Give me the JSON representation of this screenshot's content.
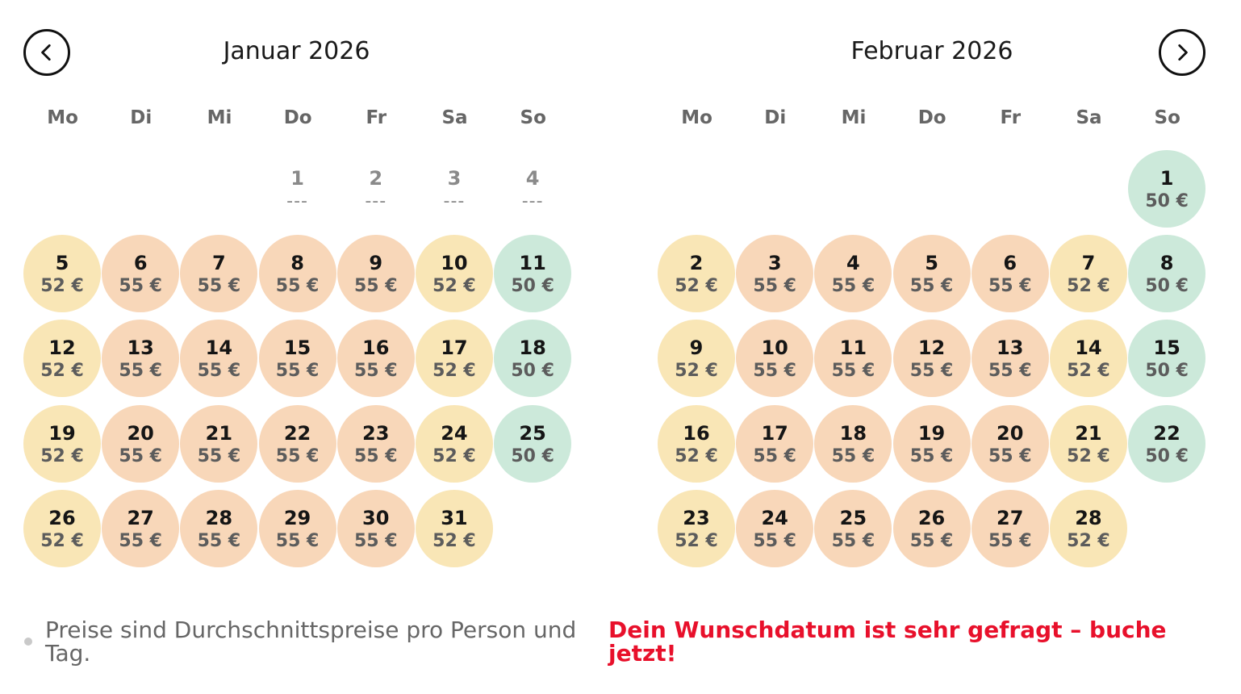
{
  "nav": {
    "prev_icon": "chevron-left-icon",
    "next_icon": "chevron-right-icon"
  },
  "weekdays": [
    "Mo",
    "Di",
    "Mi",
    "Do",
    "Fr",
    "Sa",
    "So"
  ],
  "colors": {
    "tier_52": "#f9e6b6",
    "tier_55": "#f8d7b9",
    "tier_50": "#cce9da",
    "alert": "#e8102b"
  },
  "months": [
    {
      "title": "Januar 2026",
      "offset": 3,
      "days": [
        {
          "day": "1",
          "price": "---",
          "tier": "na"
        },
        {
          "day": "2",
          "price": "---",
          "tier": "na"
        },
        {
          "day": "3",
          "price": "---",
          "tier": "na"
        },
        {
          "day": "4",
          "price": "---",
          "tier": "na"
        },
        {
          "day": "5",
          "price": "52 €",
          "tier": "52"
        },
        {
          "day": "6",
          "price": "55 €",
          "tier": "55"
        },
        {
          "day": "7",
          "price": "55 €",
          "tier": "55"
        },
        {
          "day": "8",
          "price": "55 €",
          "tier": "55"
        },
        {
          "day": "9",
          "price": "55 €",
          "tier": "55"
        },
        {
          "day": "10",
          "price": "52 €",
          "tier": "52"
        },
        {
          "day": "11",
          "price": "50 €",
          "tier": "50"
        },
        {
          "day": "12",
          "price": "52 €",
          "tier": "52"
        },
        {
          "day": "13",
          "price": "55 €",
          "tier": "55"
        },
        {
          "day": "14",
          "price": "55 €",
          "tier": "55"
        },
        {
          "day": "15",
          "price": "55 €",
          "tier": "55"
        },
        {
          "day": "16",
          "price": "55 €",
          "tier": "55"
        },
        {
          "day": "17",
          "price": "52 €",
          "tier": "52"
        },
        {
          "day": "18",
          "price": "50 €",
          "tier": "50"
        },
        {
          "day": "19",
          "price": "52 €",
          "tier": "52"
        },
        {
          "day": "20",
          "price": "55 €",
          "tier": "55"
        },
        {
          "day": "21",
          "price": "55 €",
          "tier": "55"
        },
        {
          "day": "22",
          "price": "55 €",
          "tier": "55"
        },
        {
          "day": "23",
          "price": "55 €",
          "tier": "55"
        },
        {
          "day": "24",
          "price": "52 €",
          "tier": "52"
        },
        {
          "day": "25",
          "price": "50 €",
          "tier": "50"
        },
        {
          "day": "26",
          "price": "52 €",
          "tier": "52"
        },
        {
          "day": "27",
          "price": "55 €",
          "tier": "55"
        },
        {
          "day": "28",
          "price": "55 €",
          "tier": "55"
        },
        {
          "day": "29",
          "price": "55 €",
          "tier": "55"
        },
        {
          "day": "30",
          "price": "55 €",
          "tier": "55"
        },
        {
          "day": "31",
          "price": "52 €",
          "tier": "52"
        }
      ]
    },
    {
      "title": "Februar 2026",
      "offset": 6,
      "days": [
        {
          "day": "1",
          "price": "50 €",
          "tier": "50"
        },
        {
          "day": "2",
          "price": "52 €",
          "tier": "52"
        },
        {
          "day": "3",
          "price": "55 €",
          "tier": "55"
        },
        {
          "day": "4",
          "price": "55 €",
          "tier": "55"
        },
        {
          "day": "5",
          "price": "55 €",
          "tier": "55"
        },
        {
          "day": "6",
          "price": "55 €",
          "tier": "55"
        },
        {
          "day": "7",
          "price": "52 €",
          "tier": "52"
        },
        {
          "day": "8",
          "price": "50 €",
          "tier": "50"
        },
        {
          "day": "9",
          "price": "52 €",
          "tier": "52"
        },
        {
          "day": "10",
          "price": "55 €",
          "tier": "55"
        },
        {
          "day": "11",
          "price": "55 €",
          "tier": "55"
        },
        {
          "day": "12",
          "price": "55 €",
          "tier": "55"
        },
        {
          "day": "13",
          "price": "55 €",
          "tier": "55"
        },
        {
          "day": "14",
          "price": "52 €",
          "tier": "52"
        },
        {
          "day": "15",
          "price": "50 €",
          "tier": "50"
        },
        {
          "day": "16",
          "price": "52 €",
          "tier": "52"
        },
        {
          "day": "17",
          "price": "55 €",
          "tier": "55"
        },
        {
          "day": "18",
          "price": "55 €",
          "tier": "55"
        },
        {
          "day": "19",
          "price": "55 €",
          "tier": "55"
        },
        {
          "day": "20",
          "price": "55 €",
          "tier": "55"
        },
        {
          "day": "21",
          "price": "52 €",
          "tier": "52"
        },
        {
          "day": "22",
          "price": "50 €",
          "tier": "50"
        },
        {
          "day": "23",
          "price": "52 €",
          "tier": "52"
        },
        {
          "day": "24",
          "price": "55 €",
          "tier": "55"
        },
        {
          "day": "25",
          "price": "55 €",
          "tier": "55"
        },
        {
          "day": "26",
          "price": "55 €",
          "tier": "55"
        },
        {
          "day": "27",
          "price": "55 €",
          "tier": "55"
        },
        {
          "day": "28",
          "price": "52 €",
          "tier": "52"
        }
      ]
    }
  ],
  "footer": {
    "note": "Preise sind Durchschnittspreise pro Person und Tag.",
    "alert": "Dein Wunschdatum ist sehr gefragt – buche jetzt!"
  }
}
